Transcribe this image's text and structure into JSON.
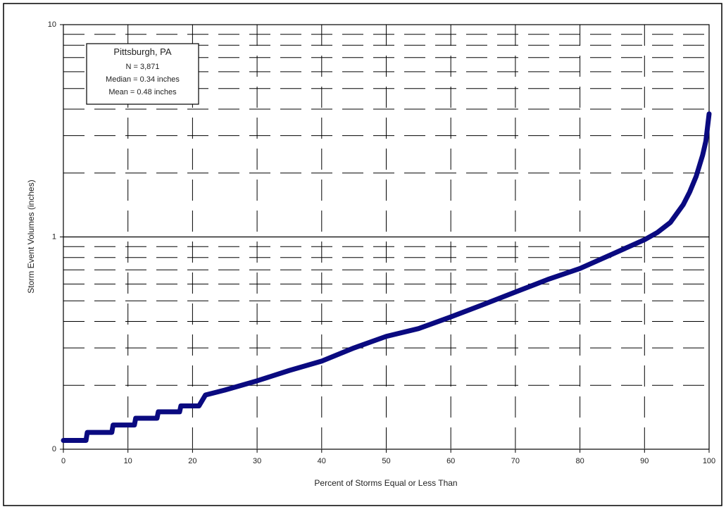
{
  "chart_data": {
    "type": "line",
    "ylabel": "Storm Event Volumes (inches)",
    "xlabel": "Percent of Storms Equal or Less Than",
    "annotation": [
      "Pittsburgh, PA",
      "N = 3,871",
      "Median = 0.34 inches",
      "Mean = 0.48 inches"
    ],
    "x": [
      0,
      3.5,
      3.7,
      7.5,
      7.7,
      11,
      11.2,
      14.5,
      14.7,
      18,
      18.2,
      21,
      22,
      25,
      30,
      35,
      40,
      45,
      50,
      55,
      60,
      65,
      70,
      75,
      80,
      85,
      90,
      92,
      94,
      96,
      97,
      98,
      99,
      99.5,
      100
    ],
    "series": [
      {
        "color": "#0a0a80",
        "values": [
          0.11,
          0.11,
          0.12,
          0.12,
          0.13,
          0.13,
          0.14,
          0.14,
          0.15,
          0.15,
          0.16,
          0.16,
          0.18,
          0.19,
          0.21,
          0.235,
          0.26,
          0.3,
          0.34,
          0.37,
          0.42,
          0.48,
          0.55,
          0.63,
          0.71,
          0.83,
          0.97,
          1.05,
          1.17,
          1.42,
          1.63,
          1.93,
          2.43,
          2.83,
          3.8
        ]
      }
    ],
    "xlim": [
      0,
      100
    ],
    "xticks": [
      0,
      10,
      20,
      30,
      40,
      50,
      60,
      70,
      80,
      90,
      100
    ],
    "ylim": [
      0.1,
      10
    ],
    "yticks": [
      {
        "value": 0.1,
        "label": "0"
      },
      1,
      10
    ],
    "y_minor_grid": [
      0.2,
      0.3,
      0.4,
      0.5,
      0.6,
      0.7,
      0.8,
      0.9,
      2,
      3,
      4,
      5,
      6,
      7,
      8,
      9
    ],
    "ylog": true,
    "grid": true
  }
}
